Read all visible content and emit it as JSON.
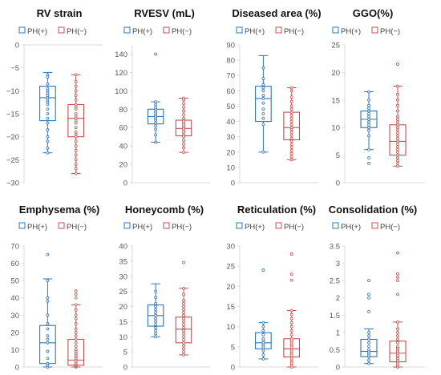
{
  "legend": {
    "pos_label": "PH(+)",
    "neg_label": "PH(−)"
  },
  "colors": {
    "pos": "#2E75B6",
    "neg": "#C0504D",
    "axis": "#D9D9D9",
    "text": "#595959"
  },
  "chart_data": [
    {
      "type": "box",
      "title": "RV strain",
      "ylim": [
        -30,
        0
      ],
      "yticks": [
        0,
        -5,
        -10,
        -15,
        -20,
        -25,
        -30
      ],
      "grid": false,
      "legend_position": "top",
      "series": [
        {
          "name": "PH(+)",
          "whisker_low": -23.5,
          "q1": -16.5,
          "median": -11.5,
          "q3": -9,
          "whisker_high": -6,
          "outliers": [],
          "points": [
            -6.5,
            -7,
            -8.5,
            -9.5,
            -10,
            -10.5,
            -11,
            -11.5,
            -12,
            -12.5,
            -13,
            -14,
            -15,
            -16,
            -17,
            -18.5,
            -20,
            -21,
            -22.5,
            -23.5
          ]
        },
        {
          "name": "PH(−)",
          "whisker_low": -28,
          "q1": -20,
          "median": -16,
          "q3": -13,
          "whisker_high": -6.5,
          "outliers": [],
          "points": [
            -6.5,
            -8,
            -9,
            -10,
            -11,
            -12,
            -13,
            -13.5,
            -14,
            -15,
            -15.5,
            -16,
            -16.5,
            -17,
            -18,
            -19,
            -19.5,
            -20,
            -21,
            -22,
            -23,
            -24,
            -25,
            -26,
            -27,
            -28
          ]
        }
      ]
    },
    {
      "type": "box",
      "title": "RVESV (mL)",
      "ylim": [
        0,
        150
      ],
      "yticks": [
        0,
        20,
        40,
        60,
        80,
        100,
        120,
        140
      ],
      "grid": false,
      "legend_position": "top",
      "series": [
        {
          "name": "PH(+)",
          "whisker_low": 44,
          "q1": 64,
          "median": 72,
          "q3": 80,
          "whisker_high": 88,
          "outliers": [
            140
          ],
          "points": [
            44,
            52,
            58,
            62,
            65,
            68,
            70,
            72,
            74,
            76,
            78,
            80,
            82,
            85,
            88
          ]
        },
        {
          "name": "PH(−)",
          "whisker_low": 33,
          "q1": 51,
          "median": 59,
          "q3": 68,
          "whisker_high": 92,
          "outliers": [],
          "points": [
            33,
            38,
            42,
            46,
            50,
            52,
            55,
            57,
            59,
            61,
            63,
            65,
            67,
            70,
            74,
            78,
            82,
            86,
            90,
            92
          ]
        }
      ]
    },
    {
      "type": "box",
      "title": "Diseased area (%)",
      "ylim": [
        0,
        90
      ],
      "yticks": [
        0,
        10,
        20,
        30,
        40,
        50,
        60,
        70,
        80,
        90
      ],
      "grid": false,
      "legend_position": "top",
      "series": [
        {
          "name": "PH(+)",
          "whisker_low": 20,
          "q1": 40,
          "median": 55,
          "q3": 63,
          "whisker_high": 83,
          "outliers": [],
          "points": [
            20,
            38,
            42,
            45,
            48,
            52,
            55,
            57,
            60,
            62,
            64,
            68,
            75
          ]
        },
        {
          "name": "PH(−)",
          "whisker_low": 15,
          "q1": 28,
          "median": 36,
          "q3": 46,
          "whisker_high": 62,
          "outliers": [],
          "points": [
            15,
            17,
            19,
            21,
            23,
            25,
            27,
            29,
            31,
            33,
            35,
            36,
            38,
            40,
            42,
            44,
            46,
            48,
            50,
            53,
            56,
            60,
            62
          ]
        }
      ]
    },
    {
      "type": "box",
      "title": "GGO(%)",
      "ylim": [
        0,
        25
      ],
      "yticks": [
        0,
        5,
        10,
        15,
        20,
        25
      ],
      "grid": false,
      "legend_position": "top",
      "series": [
        {
          "name": "PH(+)",
          "whisker_low": 6,
          "q1": 10,
          "median": 11.5,
          "q3": 13,
          "whisker_high": 16.5,
          "outliers": [
            4.5,
            3.5
          ],
          "points": [
            6,
            8.5,
            9.5,
            10,
            10.5,
            11,
            11.5,
            12,
            12.5,
            13,
            13.5,
            14,
            15,
            16.5
          ]
        },
        {
          "name": "PH(−)",
          "whisker_low": 3,
          "q1": 5,
          "median": 7.5,
          "q3": 10.5,
          "whisker_high": 17.5,
          "outliers": [
            21.5
          ],
          "points": [
            3,
            3.5,
            4,
            4.5,
            5,
            5.5,
            6,
            6.5,
            7,
            7.5,
            8,
            8.5,
            9,
            9.5,
            10,
            10.5,
            11,
            11.5,
            12,
            13,
            14,
            15,
            16,
            17.5
          ]
        }
      ]
    },
    {
      "type": "box",
      "title": "Emphysema (%)",
      "ylim": [
        0,
        70
      ],
      "yticks": [
        0,
        10,
        20,
        30,
        40,
        50,
        60,
        70
      ],
      "grid": false,
      "legend_position": "top",
      "series": [
        {
          "name": "PH(+)",
          "whisker_low": 0,
          "q1": 2,
          "median": 14,
          "q3": 24,
          "whisker_high": 51,
          "outliers": [
            65
          ],
          "points": [
            0,
            1,
            2,
            5,
            9,
            14,
            16,
            18,
            22,
            25,
            30,
            38,
            40,
            50
          ]
        },
        {
          "name": "PH(−)",
          "whisker_low": 0,
          "q1": 1,
          "median": 4,
          "q3": 16,
          "whisker_high": 36,
          "outliers": [
            40,
            42,
            44
          ],
          "points": [
            0,
            0.5,
            1,
            1.5,
            2,
            3,
            4,
            5,
            6,
            7,
            8,
            9,
            10,
            12,
            14,
            16,
            18,
            20,
            22,
            25,
            28,
            30,
            33,
            36
          ]
        }
      ]
    },
    {
      "type": "box",
      "title": "Honeycomb (%)",
      "ylim": [
        0,
        40
      ],
      "yticks": [
        0,
        5,
        10,
        15,
        20,
        25,
        30,
        35,
        40
      ],
      "grid": false,
      "legend_position": "top",
      "series": [
        {
          "name": "PH(+)",
          "whisker_low": 10,
          "q1": 13.5,
          "median": 17,
          "q3": 20.5,
          "whisker_high": 27.5,
          "outliers": [],
          "points": [
            10,
            11,
            12,
            13,
            14,
            15,
            16,
            17,
            18,
            19,
            20,
            21,
            23,
            25
          ]
        },
        {
          "name": "PH(−)",
          "whisker_low": 4,
          "q1": 8,
          "median": 12.5,
          "q3": 16.5,
          "whisker_high": 26,
          "outliers": [
            34.5
          ],
          "points": [
            4,
            5,
            6,
            7,
            8,
            9,
            10,
            11,
            12,
            13,
            14,
            15,
            16,
            17,
            18,
            19,
            20,
            21,
            22,
            24,
            26
          ]
        }
      ]
    },
    {
      "type": "box",
      "title": "Reticulation (%)",
      "ylim": [
        0,
        30
      ],
      "yticks": [
        0,
        5,
        10,
        15,
        20,
        25,
        30
      ],
      "grid": false,
      "legend_position": "top",
      "series": [
        {
          "name": "PH(+)",
          "whisker_low": 2,
          "q1": 4.5,
          "median": 6,
          "q3": 8.5,
          "whisker_high": 11,
          "outliers": [
            24
          ],
          "points": [
            2,
            3,
            4,
            4.5,
            5,
            5.5,
            6,
            6.5,
            7,
            8,
            9,
            10,
            11
          ]
        },
        {
          "name": "PH(−)",
          "whisker_low": 0,
          "q1": 2.5,
          "median": 4.5,
          "q3": 7,
          "whisker_high": 14,
          "outliers": [
            21.5,
            23,
            28
          ],
          "points": [
            0,
            0.5,
            1,
            1.5,
            2,
            2.5,
            3,
            3.5,
            4,
            4.5,
            5,
            5.5,
            6,
            6.5,
            7,
            8,
            9,
            10,
            11,
            12,
            13,
            14
          ]
        }
      ]
    },
    {
      "type": "box",
      "title": "Consolidation (%)",
      "ylim": [
        0,
        3.5
      ],
      "yticks": [
        0,
        0.5,
        1,
        1.5,
        2,
        2.5,
        3,
        3.5
      ],
      "grid": false,
      "legend_position": "top",
      "series": [
        {
          "name": "PH(+)",
          "whisker_low": 0.1,
          "q1": 0.3,
          "median": 0.45,
          "q3": 0.8,
          "whisker_high": 1.1,
          "outliers": [
            1.6,
            2.0,
            2.1,
            2.5
          ],
          "points": [
            0.1,
            0.2,
            0.3,
            0.35,
            0.4,
            0.45,
            0.5,
            0.6,
            0.7,
            0.8,
            0.9,
            1.0
          ]
        },
        {
          "name": "PH(−)",
          "whisker_low": 0,
          "q1": 0.15,
          "median": 0.4,
          "q3": 0.75,
          "whisker_high": 1.3,
          "outliers": [
            2.1,
            2.5,
            2.6,
            2.7,
            3.3
          ],
          "points": [
            0,
            0.05,
            0.1,
            0.15,
            0.2,
            0.25,
            0.3,
            0.35,
            0.4,
            0.45,
            0.5,
            0.55,
            0.6,
            0.7,
            0.8,
            0.9,
            1.0,
            1.1,
            1.3
          ]
        }
      ]
    }
  ]
}
